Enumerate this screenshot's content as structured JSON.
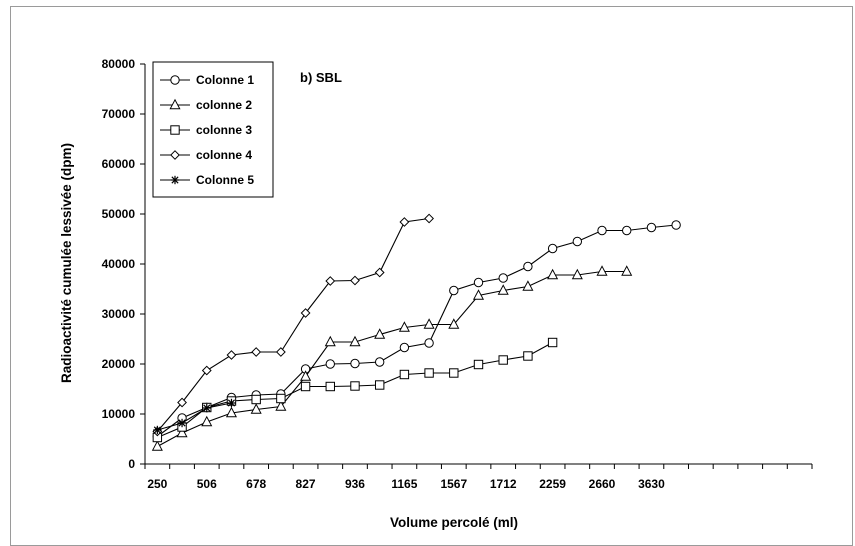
{
  "chart_data": {
    "type": "line",
    "title": "",
    "annotation": "b) SBL",
    "xlabel": "Volume percolé (ml)",
    "ylabel": "Radioactivité cumulée lessivée (dpm)",
    "ylim": [
      0,
      80000
    ],
    "yticks": [
      "0",
      "10000",
      "20000",
      "30000",
      "40000",
      "50000",
      "60000",
      "70000",
      "80000"
    ],
    "xtick_labels": [
      "250",
      "506",
      "678",
      "827",
      "936",
      "1165",
      "1567",
      "1712",
      "2259",
      "2660",
      "3630"
    ],
    "n_positions": 27,
    "legend_position": "top-left",
    "grid": false,
    "series": [
      {
        "name": "Colonne 1",
        "marker": "circle",
        "values": [
          5500,
          9200,
          11300,
          13300,
          13800,
          14000,
          19000,
          20000,
          20100,
          20400,
          23300,
          24200,
          34700,
          36300,
          37200,
          39500,
          43100,
          44500,
          46700,
          46700,
          47300,
          47800
        ]
      },
      {
        "name": "colonne 2",
        "marker": "triangle",
        "values": [
          3500,
          6200,
          8400,
          10200,
          10900,
          11500,
          17500,
          24400,
          24400,
          25900,
          27300,
          27900,
          27900,
          33700,
          34700,
          35500,
          37800,
          37800,
          38500,
          38500
        ]
      },
      {
        "name": "colonne 3",
        "marker": "square",
        "values": [
          5300,
          7400,
          11300,
          12600,
          12900,
          13100,
          15500,
          15500,
          15600,
          15800,
          17900,
          18200,
          18200,
          19900,
          20800,
          21600,
          24300
        ]
      },
      {
        "name": "colonne 4",
        "marker": "diamond",
        "values": [
          6500,
          12300,
          18700,
          21800,
          22400,
          22400,
          30200,
          36600,
          36700,
          38300,
          48400,
          49100
        ]
      },
      {
        "name": "Colonne 5",
        "marker": "star",
        "values": [
          6800,
          8200,
          11200,
          12200
        ]
      }
    ]
  }
}
